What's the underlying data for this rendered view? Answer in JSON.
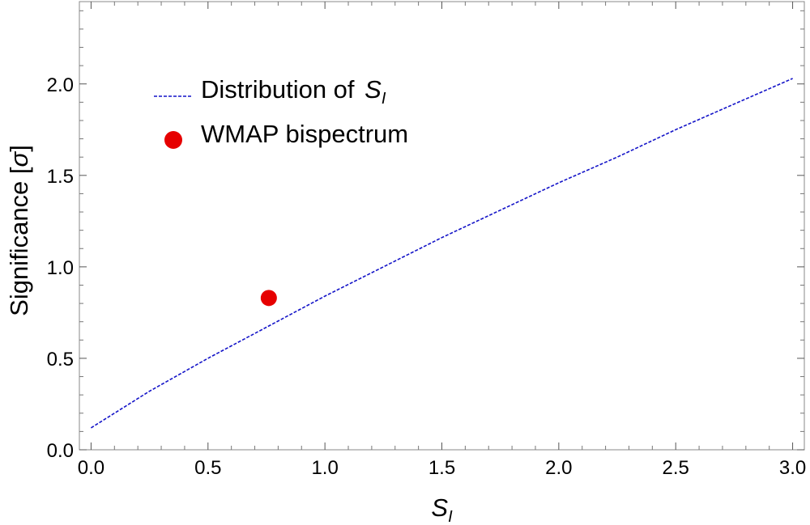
{
  "chart_data": {
    "type": "line",
    "title": "",
    "xlabel": {
      "main": "S",
      "sub": "I"
    },
    "ylabel": {
      "prefix": "Significance [",
      "symbol": "σ",
      "suffix": "]"
    },
    "xlim": [
      -0.05,
      3.05
    ],
    "ylim": [
      0.0,
      2.45
    ],
    "grid": false,
    "legend_position": "top-left",
    "x_ticks": [
      0.0,
      0.5,
      1.0,
      1.5,
      2.0,
      2.5,
      3.0
    ],
    "x_tick_labels": [
      "0.0",
      "0.5",
      "1.0",
      "1.5",
      "2.0",
      "2.5",
      "3.0"
    ],
    "y_ticks": [
      0.0,
      0.5,
      1.0,
      1.5,
      2.0
    ],
    "y_tick_labels": [
      "0.0",
      "0.5",
      "1.0",
      "1.5",
      "2.0"
    ],
    "series": [
      {
        "name": {
          "text": "Distribution of ",
          "main": "S",
          "sub": "I"
        },
        "kind": "line",
        "style": "dashed",
        "color": "#1414c8",
        "x": [
          0.0,
          0.25,
          0.5,
          0.75,
          1.0,
          1.25,
          1.5,
          1.75,
          2.0,
          2.25,
          2.5,
          2.75,
          3.0
        ],
        "y": [
          0.12,
          0.32,
          0.5,
          0.67,
          0.84,
          1.0,
          1.16,
          1.31,
          1.46,
          1.6,
          1.75,
          1.89,
          2.03
        ]
      },
      {
        "name": "WMAP bispectrum",
        "kind": "point",
        "color": "#e60000",
        "x": [
          0.76
        ],
        "y": [
          0.83
        ]
      }
    ]
  }
}
